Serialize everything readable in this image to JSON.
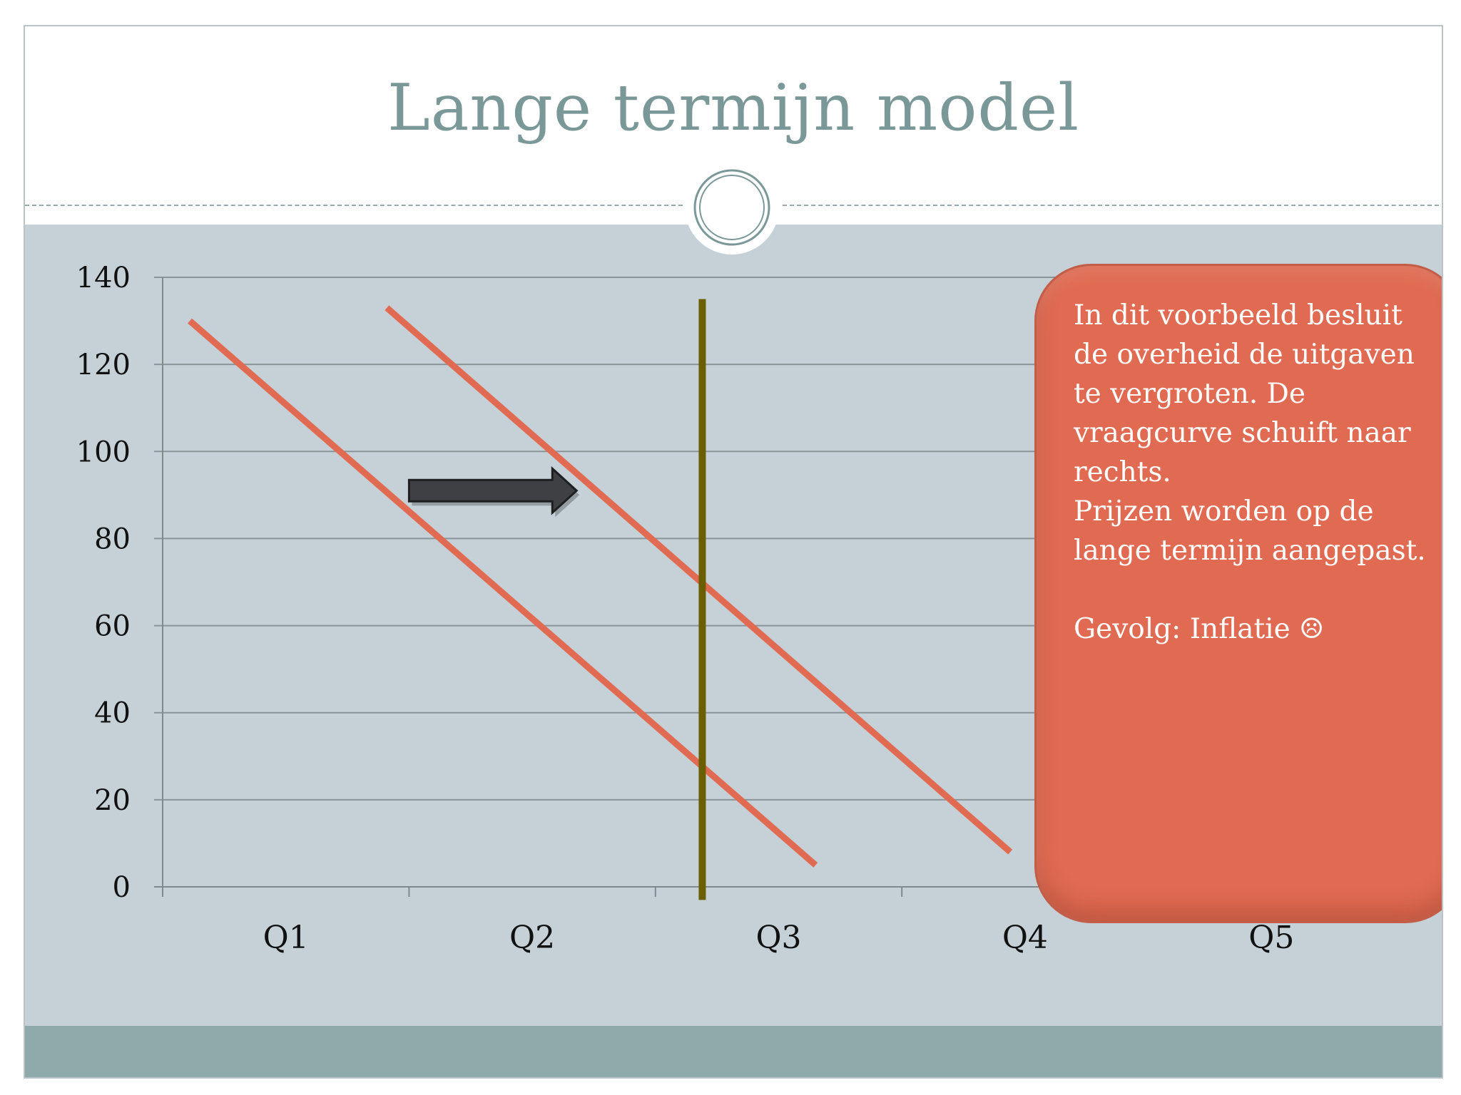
{
  "slide": {
    "title": "Lange termijn model"
  },
  "colors": {
    "title": "#7b9899",
    "content_background": "#c5d1d7",
    "footer_band": "#8eaaab",
    "demand_curve": "#e06b52",
    "supply_line": "#6b5e00",
    "callout_fill": "#e06b52",
    "arrow_fill": "#3e4043"
  },
  "chart_data": {
    "type": "line",
    "categories": [
      "Q1",
      "Q2",
      "Q3",
      "Q4",
      "Q5"
    ],
    "ylim": [
      0,
      140
    ],
    "yticks": [
      0,
      20,
      40,
      60,
      80,
      100,
      120,
      140
    ],
    "grid": true,
    "series": [
      {
        "role": "original-demand",
        "x": [
          0.11,
          2.65
        ],
        "y": [
          130,
          5
        ]
      },
      {
        "role": "shifted-demand",
        "x": [
          0.91,
          3.44
        ],
        "y": [
          133,
          8
        ]
      },
      {
        "role": "long-run-supply",
        "x": [
          2.19,
          2.19
        ],
        "y": [
          135,
          -3
        ]
      }
    ],
    "annotation_arrow": {
      "x": [
        1.0,
        1.68
      ],
      "y": [
        91,
        91
      ]
    }
  },
  "callout": {
    "lines": [
      "In dit voorbeeld besluit",
      "de overheid de uitgaven",
      "te vergroten. De",
      "vraagcurve schuift naar",
      "rechts.",
      "Prijzen worden op de",
      "lange termijn aangepast."
    ],
    "result": "Gevolg: Inflatie ☹"
  }
}
